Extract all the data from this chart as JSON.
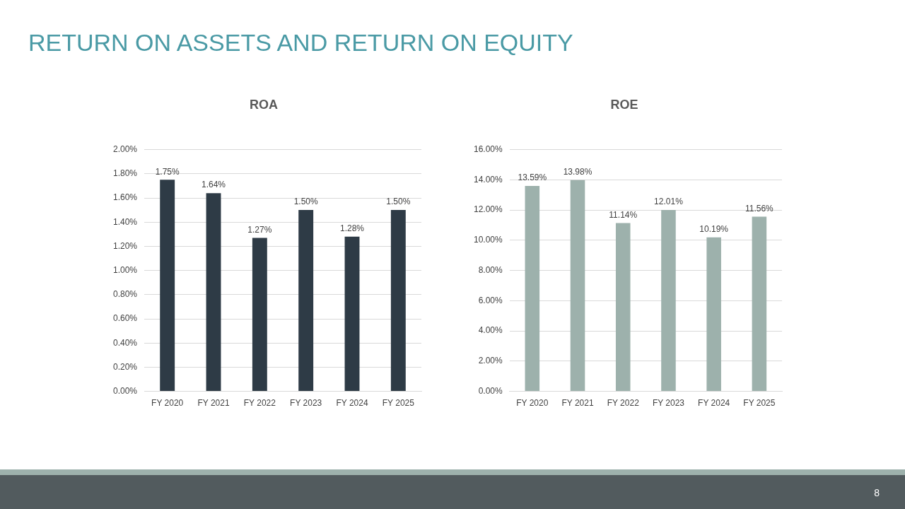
{
  "chart_data": [
    {
      "type": "other",
      "title": "RETURN ON ASSETS AND RETURN ON EQUITY",
      "annotations": [
        "8"
      ]
    },
    {
      "type": "bar",
      "title": "ROA",
      "categories": [
        "FY 2020",
        "FY 2021",
        "FY 2022",
        "FY 2023",
        "FY 2024",
        "FY 2025"
      ],
      "values": [
        1.75,
        1.64,
        1.27,
        1.5,
        1.28,
        1.5
      ],
      "value_labels": [
        "1.75%",
        "1.64%",
        "1.27%",
        "1.50%",
        "1.28%",
        "1.50%"
      ],
      "color": "#2e3b46",
      "ylim": [
        0,
        2
      ],
      "yticks": [
        {
          "value": 0,
          "label": "0.00%"
        },
        {
          "value": 0.2,
          "label": "0.20%"
        },
        {
          "value": 0.4,
          "label": "0.40%"
        },
        {
          "value": 0.6,
          "label": "0.60%"
        },
        {
          "value": 0.8,
          "label": "0.80%"
        },
        {
          "value": 1,
          "label": "1.00%"
        },
        {
          "value": 1.2,
          "label": "1.20%"
        },
        {
          "value": 1.4,
          "label": "1.40%"
        },
        {
          "value": 1.6,
          "label": "1.60%"
        },
        {
          "value": 1.8,
          "label": "1.80%"
        },
        {
          "value": 2,
          "label": "2.00%"
        }
      ],
      "grid": "y"
    },
    {
      "type": "bar",
      "title": "ROE",
      "categories": [
        "FY 2020",
        "FY 2021",
        "FY 2022",
        "FY 2023",
        "FY 2024",
        "FY 2025"
      ],
      "values": [
        13.59,
        13.98,
        11.14,
        12.01,
        10.19,
        11.56
      ],
      "value_labels": [
        "13.59%",
        "13.98%",
        "11.14%",
        "12.01%",
        "10.19%",
        "11.56%"
      ],
      "color": "#9db1ac",
      "ylim": [
        0,
        16
      ],
      "yticks": [
        {
          "value": 0,
          "label": "0.00%"
        },
        {
          "value": 2,
          "label": "2.00%"
        },
        {
          "value": 4,
          "label": "4.00%"
        },
        {
          "value": 6,
          "label": "6.00%"
        },
        {
          "value": 8,
          "label": "8.00%"
        },
        {
          "value": 10,
          "label": "10.00%"
        },
        {
          "value": 12,
          "label": "12.00%"
        },
        {
          "value": 14,
          "label": "14.00%"
        },
        {
          "value": 16,
          "label": "16.00%"
        }
      ],
      "grid": "y"
    }
  ]
}
